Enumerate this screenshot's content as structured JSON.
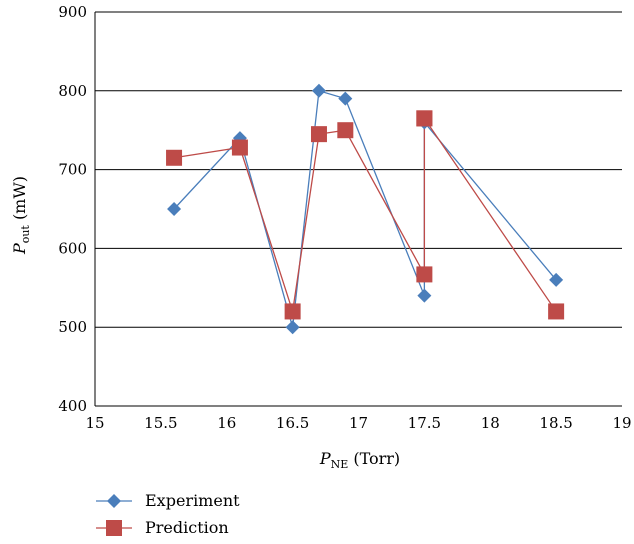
{
  "chart_data": {
    "type": "line",
    "title": "",
    "xlabel": {
      "main": "P",
      "sub": "NE",
      "unit": " (Torr)"
    },
    "ylabel": {
      "main": "P",
      "sub": "out",
      "unit": " (mW)"
    },
    "xlim": [
      15,
      19
    ],
    "ylim": [
      400,
      900
    ],
    "xticks": [
      15,
      15.5,
      16,
      16.5,
      17,
      17.5,
      18,
      18.5,
      19
    ],
    "yticks": [
      400,
      500,
      600,
      700,
      800,
      900
    ],
    "grid": "horizontal",
    "legend_position": "bottom-left",
    "series": [
      {
        "name": "Experiment",
        "color": "#4a7ebb",
        "marker": "diamond",
        "x": [
          15.6,
          16.1,
          16.5,
          16.7,
          16.9,
          17.5,
          17.5,
          17.5,
          18.5
        ],
        "y": [
          650,
          740,
          500,
          800,
          790,
          540,
          760,
          760,
          560
        ]
      },
      {
        "name": "Prediction",
        "color": "#be4b48",
        "marker": "square",
        "x": [
          15.6,
          16.1,
          16.5,
          16.7,
          16.9,
          17.5,
          17.5,
          17.5,
          18.5
        ],
        "y": [
          715,
          728,
          520,
          745,
          750,
          567,
          765,
          765,
          520
        ]
      }
    ]
  }
}
